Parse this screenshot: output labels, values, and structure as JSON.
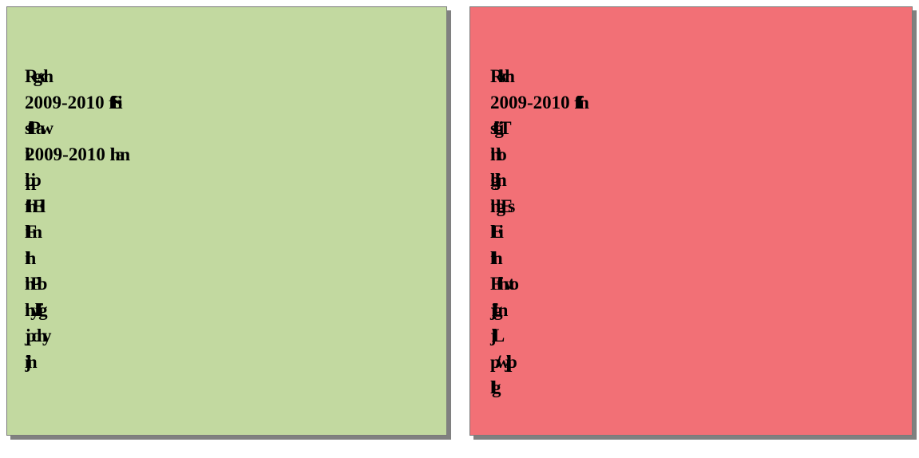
{
  "panels": [
    {
      "lines": [
        "Rgsch",
        "2009-2010 fifiSi",
        "sfiliPaw",
        "lii2009-2010 lhan",
        "lipip",
        "flilnElil",
        "lilFn",
        "iliih",
        "lnPlb",
        "lnylfifig",
        "jpdny",
        "ijlin"
      ]
    },
    {
      "lines": [
        "Rlsch",
        "2009-2010 fiffin",
        "sfilgiT",
        "lnlto",
        "lgljn",
        "lnlgEs",
        "lllEi",
        "ltiln",
        "Ffilnvto",
        "jfilgn",
        "jlilL",
        "p//wjlilp",
        "lllilg"
      ]
    }
  ]
}
